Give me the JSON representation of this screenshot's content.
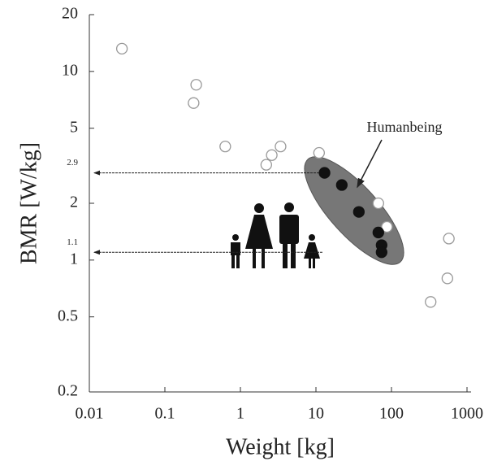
{
  "chart_data": {
    "type": "scatter",
    "xlabel": "Weight [kg]",
    "ylabel": "BMR [W/kg]",
    "xlog": true,
    "ylog": true,
    "xlim": [
      0.01,
      1000
    ],
    "ylim": [
      0.2,
      20
    ],
    "xticks": [
      0.01,
      0.1,
      1,
      10,
      100,
      1000
    ],
    "yticks": [
      0.2,
      0.5,
      1,
      2,
      5,
      10,
      20
    ],
    "series": [
      {
        "color": "#999999",
        "filled": false,
        "x": [
          0.027,
          0.26,
          0.24,
          0.63,
          2.2,
          2.6,
          3.4,
          11,
          67,
          87,
          575,
          550,
          330
        ],
        "values": [
          13.2,
          8.5,
          6.8,
          4.0,
          3.2,
          3.6,
          4.0,
          3.7,
          2.0,
          1.5,
          1.3,
          0.8,
          0.6
        ]
      },
      {
        "color": "#111111",
        "filled": true,
        "x": [
          13,
          22,
          37,
          67,
          74,
          74
        ],
        "values": [
          2.9,
          2.5,
          1.8,
          1.4,
          1.2,
          1.1
        ]
      }
    ],
    "hlines": [
      2.9,
      1.1
    ],
    "annotation": "Humanbeing"
  }
}
